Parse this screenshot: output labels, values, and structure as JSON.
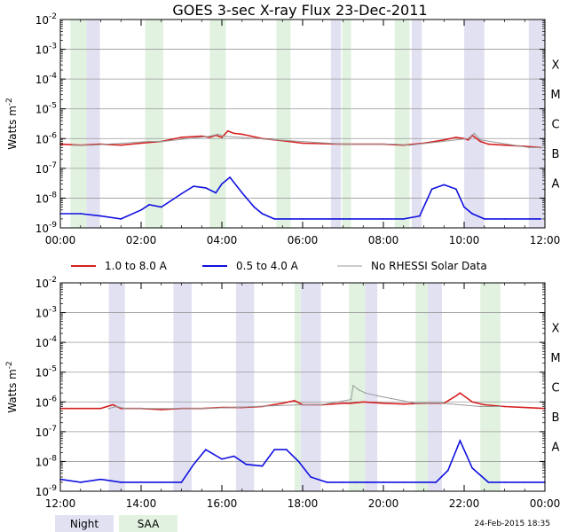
{
  "title": "GOES 3-sec X-ray Flux   23-Dec-2011",
  "footer_timestamp": "24-Feb-2015 18:35",
  "legend": {
    "series": [
      {
        "label": "1.0 to 8.0 A",
        "color": "#d62020"
      },
      {
        "label": "0.5 to 4.0 A",
        "color": "#1010e0"
      },
      {
        "label": "No RHESSI Solar Data",
        "color": "#999999"
      }
    ],
    "shading": [
      {
        "label": "Night",
        "color": "#e1e1f2"
      },
      {
        "label": "SAA",
        "color": "#e1f2e1"
      }
    ]
  },
  "chart_data": [
    {
      "type": "line",
      "panel": "top",
      "ylabel": "Watts m",
      "ylabel_exponent": "-2",
      "yscale": "log",
      "ylim": [
        1e-09,
        0.01
      ],
      "y_ticks": [
        {
          "base": "10",
          "exp": "-2"
        },
        {
          "base": "10",
          "exp": "-3"
        },
        {
          "base": "10",
          "exp": "-4"
        },
        {
          "base": "10",
          "exp": "-5"
        },
        {
          "base": "10",
          "exp": "-6"
        },
        {
          "base": "10",
          "exp": "-7"
        },
        {
          "base": "10",
          "exp": "-8"
        },
        {
          "base": "10",
          "exp": "-9"
        }
      ],
      "flare_classes": [
        "X",
        "M",
        "C",
        "B",
        "A"
      ],
      "xlim_hours": [
        0,
        12
      ],
      "x_tick_labels": [
        "00:00",
        "02:00",
        "04:00",
        "06:00",
        "08:00",
        "10:00",
        "12:00"
      ],
      "night_intervals_h": [
        [
          0.65,
          0.98
        ],
        [
          6.7,
          6.95
        ],
        [
          8.7,
          8.95
        ],
        [
          10.0,
          10.5
        ],
        [
          11.6,
          12.0
        ]
      ],
      "saa_intervals_h": [
        [
          0.25,
          0.65
        ],
        [
          2.1,
          2.55
        ],
        [
          3.7,
          4.1
        ],
        [
          5.35,
          5.7
        ],
        [
          6.98,
          7.2
        ],
        [
          8.28,
          8.65
        ]
      ],
      "series": [
        {
          "name": "1.0 to 8.0 A",
          "color": "#d62020",
          "x_hours": [
            0,
            0.5,
            1.0,
            1.5,
            2.0,
            2.5,
            3.0,
            3.5,
            3.7,
            3.85,
            4.0,
            4.15,
            4.3,
            4.5,
            5.0,
            5.5,
            6.0,
            7.0,
            8.0,
            8.5,
            9.0,
            9.5,
            9.8,
            10.0,
            10.1,
            10.2,
            10.4,
            10.6,
            11.0,
            11.5,
            11.9
          ],
          "values": [
            6.5e-07,
            6e-07,
            6.5e-07,
            6e-07,
            7e-07,
            8e-07,
            1.1e-06,
            1.2e-06,
            1.1e-06,
            1.3e-06,
            1.1e-06,
            1.8e-06,
            1.5e-06,
            1.4e-06,
            1e-06,
            8.5e-07,
            7e-07,
            6.5e-07,
            6.5e-07,
            6e-07,
            7e-07,
            9e-07,
            1.1e-06,
            1e-06,
            9e-07,
            1.3e-06,
            8e-07,
            6.5e-07,
            6e-07,
            5.5e-07,
            5e-07
          ]
        },
        {
          "name": "0.5 to 4.0 A",
          "color": "#1010e0",
          "x_hours": [
            0,
            0.5,
            1.0,
            1.5,
            2.0,
            2.2,
            2.5,
            3.0,
            3.3,
            3.6,
            3.85,
            4.0,
            4.2,
            4.5,
            4.8,
            5.0,
            5.3,
            6.0,
            7.0,
            8.0,
            8.5,
            8.9,
            9.2,
            9.5,
            9.8,
            10.0,
            10.2,
            10.5,
            11.0,
            11.9
          ],
          "values": [
            3e-09,
            3e-09,
            2.5e-09,
            2e-09,
            4e-09,
            6e-09,
            5e-09,
            1.4e-08,
            2.5e-08,
            2.2e-08,
            1.5e-08,
            3e-08,
            5e-08,
            1.5e-08,
            5e-09,
            3e-09,
            2e-09,
            2e-09,
            2e-09,
            2e-09,
            2e-09,
            2.5e-09,
            2e-08,
            2.8e-08,
            2e-08,
            5e-09,
            3e-09,
            2e-09,
            2e-09,
            2e-09
          ]
        },
        {
          "name": "No RHESSI Solar Data",
          "color": "#999999",
          "x_hours": [
            0.3,
            0.8,
            2.2,
            2.55,
            3.7,
            3.9,
            4.05,
            5.35,
            5.7,
            7.0,
            7.2,
            8.3,
            8.65,
            10.1,
            10.25,
            10.4,
            11.6,
            12.0
          ],
          "values": [
            6e-07,
            6e-07,
            8e-07,
            8e-07,
            1.2e-06,
            1.4e-06,
            1.2e-06,
            9e-07,
            8.5e-07,
            6.5e-07,
            6.5e-07,
            6.5e-07,
            6e-07,
            1e-06,
            1.5e-06,
            9e-07,
            5e-07,
            5e-07
          ]
        }
      ]
    },
    {
      "type": "line",
      "panel": "bottom",
      "ylabel": "Watts m",
      "ylabel_exponent": "-2",
      "yscale": "log",
      "ylim": [
        1e-09,
        0.01
      ],
      "y_ticks": [
        {
          "base": "10",
          "exp": "-2"
        },
        {
          "base": "10",
          "exp": "-3"
        },
        {
          "base": "10",
          "exp": "-4"
        },
        {
          "base": "10",
          "exp": "-5"
        },
        {
          "base": "10",
          "exp": "-6"
        },
        {
          "base": "10",
          "exp": "-7"
        },
        {
          "base": "10",
          "exp": "-8"
        },
        {
          "base": "10",
          "exp": "-9"
        }
      ],
      "flare_classes": [
        "X",
        "M",
        "C",
        "B",
        "A"
      ],
      "xlim_hours": [
        12,
        24
      ],
      "x_tick_labels": [
        "12:00",
        "14:00",
        "16:00",
        "18:00",
        "20:00",
        "22:00",
        "00:00"
      ],
      "night_intervals_h": [
        [
          13.2,
          13.6
        ],
        [
          14.8,
          15.25
        ],
        [
          16.35,
          16.8
        ],
        [
          17.95,
          18.45
        ],
        [
          19.55,
          19.85
        ],
        [
          21.1,
          21.45
        ]
      ],
      "saa_intervals_h": [
        [
          17.8,
          17.95
        ],
        [
          19.15,
          19.55
        ],
        [
          20.8,
          21.1
        ],
        [
          22.4,
          22.9
        ]
      ],
      "series": [
        {
          "name": "1.0 to 8.0 A",
          "color": "#d62020",
          "x_hours": [
            12,
            12.5,
            13,
            13.3,
            13.5,
            13.7,
            14,
            14.5,
            15,
            15.5,
            16,
            16.5,
            17,
            17.5,
            17.8,
            18.0,
            18.3,
            18.5,
            19,
            19.2,
            19.5,
            20,
            20.5,
            21,
            21.5,
            21.8,
            21.9,
            22.2,
            22.5,
            23,
            23.5,
            24
          ],
          "values": [
            6e-07,
            6e-07,
            6e-07,
            8e-07,
            6e-07,
            6e-07,
            6e-07,
            5.5e-07,
            6e-07,
            6e-07,
            6.5e-07,
            6.5e-07,
            7e-07,
            9e-07,
            1.1e-06,
            8e-07,
            8e-07,
            8e-07,
            9e-07,
            9e-07,
            1e-06,
            9e-07,
            8.5e-07,
            9e-07,
            9e-07,
            1.6e-06,
            2e-06,
            1e-06,
            8e-07,
            7e-07,
            6.5e-07,
            6e-07
          ]
        },
        {
          "name": "0.5 to 4.0 A",
          "color": "#1010e0",
          "x_hours": [
            12,
            12.5,
            13,
            13.5,
            14,
            14.5,
            15,
            15.3,
            15.6,
            16,
            16.3,
            16.6,
            17,
            17.3,
            17.6,
            17.9,
            18.2,
            18.6,
            19,
            19.3,
            19.6,
            20,
            20.5,
            21,
            21.3,
            21.6,
            21.9,
            22.2,
            22.6,
            23,
            23.5,
            24
          ],
          "values": [
            2.5e-09,
            2e-09,
            2.5e-09,
            2e-09,
            2e-09,
            2e-09,
            2e-09,
            8e-09,
            2.5e-08,
            1.2e-08,
            1.5e-08,
            8e-09,
            7e-09,
            2.5e-08,
            2.5e-08,
            1e-08,
            3e-09,
            2e-09,
            2e-09,
            2e-09,
            2e-09,
            2e-09,
            2e-09,
            2e-09,
            2e-09,
            5e-09,
            5e-08,
            6e-09,
            2e-09,
            2e-09,
            2e-09,
            2e-09
          ]
        },
        {
          "name": "No RHESSI Solar Data",
          "color": "#999999",
          "x_hours": [
            13.2,
            13.4,
            13.6,
            14.8,
            15.25,
            16.35,
            16.8,
            17.95,
            18.2,
            18.45,
            19.2,
            19.25,
            19.4,
            19.55,
            19.85,
            20.2,
            20.8,
            21.1,
            21.45,
            22.4,
            22.9
          ],
          "values": [
            6e-07,
            7e-07,
            6e-07,
            6e-07,
            6e-07,
            6.5e-07,
            7e-07,
            8e-07,
            8e-07,
            8e-07,
            1.2e-06,
            3.5e-06,
            2.5e-06,
            2e-06,
            1.6e-06,
            1.3e-06,
            9e-07,
            9e-07,
            9e-07,
            7e-07,
            7e-07
          ]
        }
      ]
    }
  ]
}
